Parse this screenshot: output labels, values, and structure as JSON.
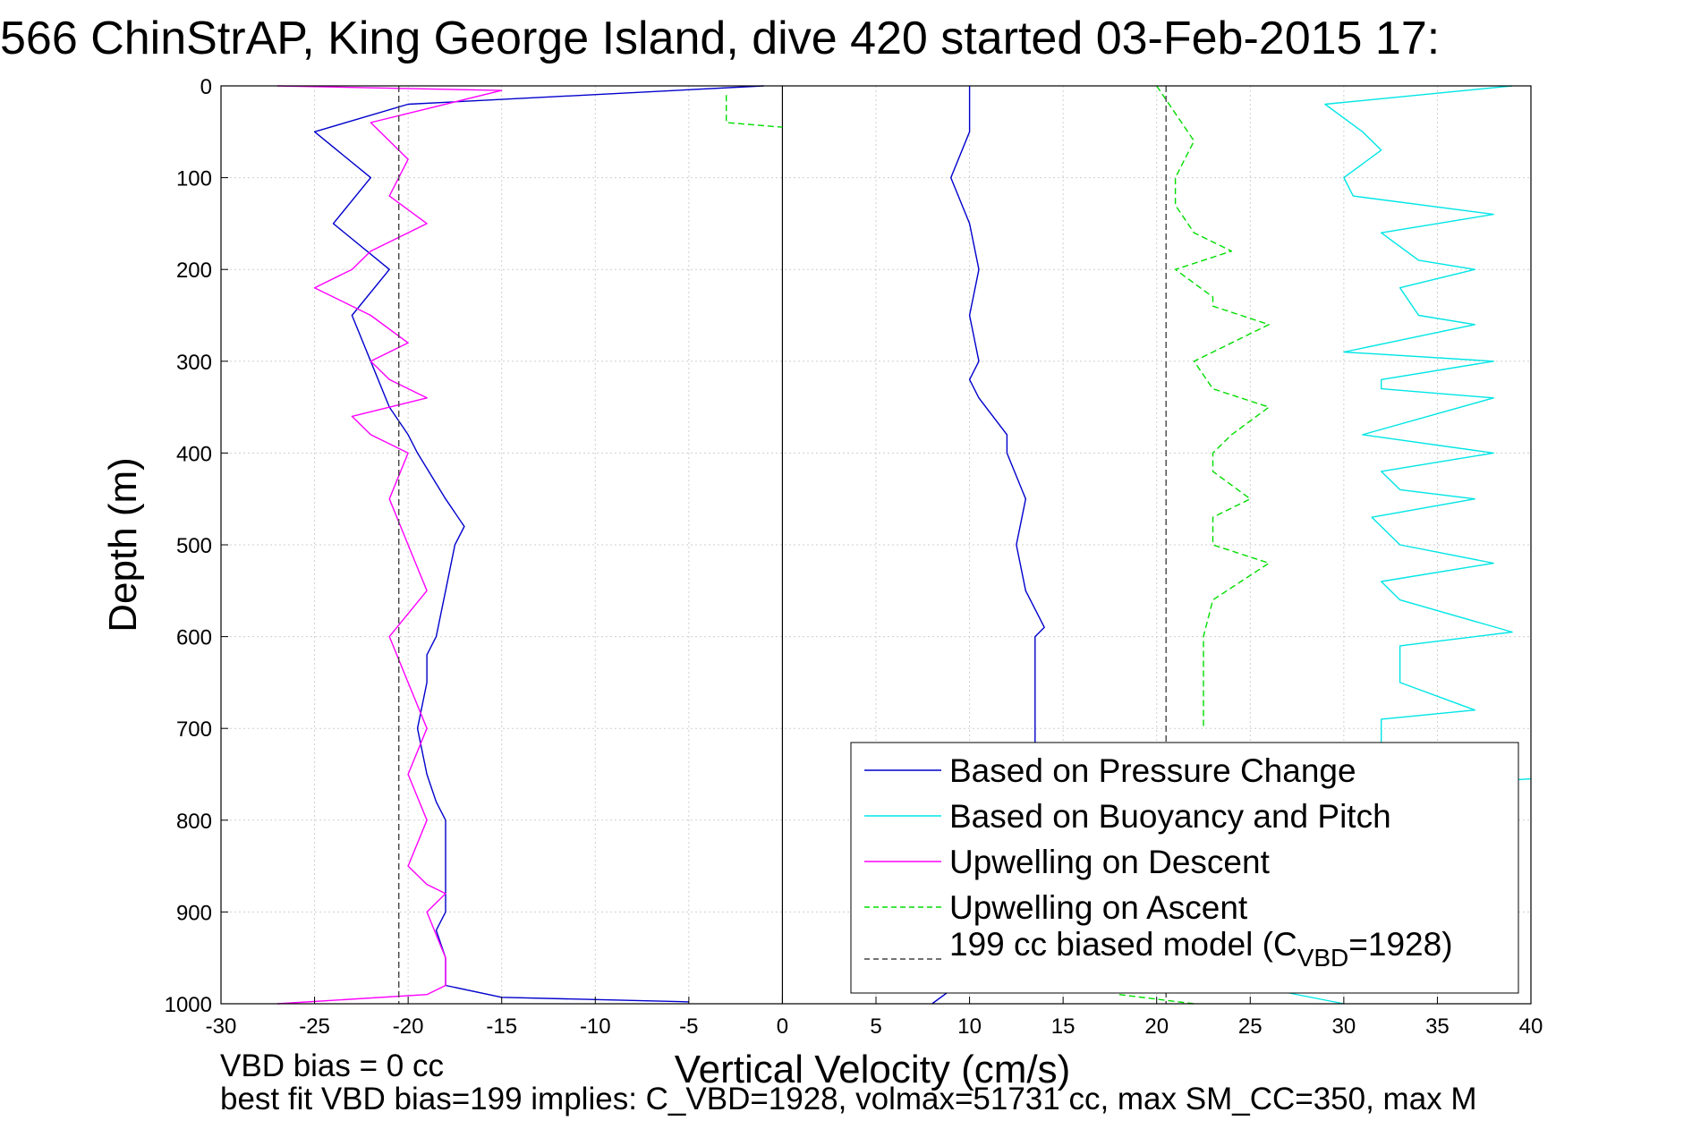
{
  "chart_data": {
    "type": "line",
    "title": "566 ChinStrAP, King George Island, dive 420 started 03-Feb-2015 17:",
    "xlabel": "Vertical Velocity (cm/s)",
    "ylabel": "Depth (m)",
    "xlim": [
      -30,
      40
    ],
    "ylim": [
      0,
      1000
    ],
    "y_reversed": true,
    "grid": true,
    "x_ticks": [
      -30,
      -25,
      -20,
      -15,
      -10,
      -5,
      0,
      5,
      10,
      15,
      20,
      25,
      30,
      35,
      40
    ],
    "y_ticks": [
      0,
      100,
      200,
      300,
      400,
      500,
      600,
      700,
      800,
      900,
      1000
    ],
    "legend_position": "bottom-right",
    "footer_lines": [
      "VBD bias = 0 cc",
      "best fit VBD bias=199 implies: C_VBD=1928, volmax=51731 cc, max SM_CC=350, max M"
    ],
    "series": [
      {
        "name": "Based on Pressure Change",
        "color": "#0000cc",
        "style": "solid",
        "pairs": [
          {
            "x": [
              -1,
              -20,
              -25,
              -22,
              -24,
              -21,
              -23,
              -22,
              -21,
              -20,
              -19.5,
              -18,
              -17,
              -17.5,
              -18,
              -18.5,
              -19,
              -19,
              -19.5,
              -19,
              -18.5,
              -18,
              -18,
              -18,
              -18,
              -18.5,
              -18,
              -18,
              -18,
              -15,
              -5
            ],
            "y": [
              0,
              20,
              50,
              100,
              150,
              200,
              250,
              300,
              350,
              380,
              400,
              450,
              480,
              500,
              550,
              600,
              620,
              650,
              700,
              750,
              780,
              800,
              850,
              870,
              900,
              920,
              950,
              970,
              980,
              993,
              998
            ]
          },
          {
            "x": [
              10,
              10,
              9,
              10,
              10.5,
              10,
              10.5,
              10,
              10.5,
              12,
              12,
              13,
              12.5,
              13,
              14,
              13.5,
              13.5,
              13.5,
              13.5
            ],
            "y": [
              0,
              50,
              100,
              150,
              200,
              250,
              300,
              320,
              340,
              380,
              400,
              450,
              500,
              550,
              590,
              600,
              650,
              680,
              720
            ]
          },
          {
            "x": [
              9,
              8
            ],
            "y": [
              985,
              1000
            ]
          }
        ]
      },
      {
        "name": "Based on Buoyancy and Pitch",
        "color": "#00e5e5",
        "style": "solid",
        "pairs": [
          {
            "x": [
              39,
              29,
              31,
              32,
              30,
              30.5,
              38,
              32,
              34,
              37,
              33,
              34,
              37,
              30,
              38,
              32,
              32,
              38,
              31,
              38,
              32,
              33,
              37,
              31.5,
              33,
              38,
              32,
              33,
              39,
              33,
              33,
              37,
              32,
              32
            ],
            "y": [
              0,
              20,
              50,
              70,
              100,
              120,
              140,
              160,
              190,
              200,
              220,
              250,
              260,
              290,
              300,
              320,
              330,
              340,
              380,
              400,
              420,
              440,
              450,
              470,
              500,
              520,
              540,
              560,
              595,
              610,
              650,
              680,
              690,
              720
            ]
          },
          {
            "x": [
              40,
              36
            ],
            "y": [
              755,
              760
            ]
          },
          {
            "x": [
              25,
              30
            ],
            "y": [
              980,
              1000
            ]
          }
        ]
      },
      {
        "name": "Upwelling on Descent",
        "color": "#ff00ff",
        "style": "solid",
        "pairs": [
          {
            "x": [
              -27,
              -15,
              -22,
              -20,
              -21,
              -19,
              -22,
              -23,
              -25,
              -22,
              -20,
              -22,
              -21,
              -19,
              -23,
              -22,
              -20,
              -21,
              -20,
              -19,
              -21,
              -20,
              -19,
              -20,
              -19,
              -20,
              -19,
              -18,
              -19,
              -18,
              -18,
              -19,
              -27
            ],
            "y": [
              0,
              5,
              40,
              80,
              120,
              150,
              180,
              200,
              220,
              250,
              280,
              300,
              320,
              340,
              360,
              380,
              400,
              450,
              500,
              550,
              600,
              650,
              700,
              750,
              800,
              850,
              870,
              880,
              900,
              950,
              980,
              990,
              1000
            ]
          }
        ]
      },
      {
        "name": "Upwelling on Ascent",
        "color": "#00dd00",
        "style": "dashed",
        "pairs": [
          {
            "x": [
              -3,
              -3,
              0
            ],
            "y": [
              10,
              40,
              45
            ]
          },
          {
            "x": [
              20,
              21,
              22,
              21,
              21,
              22,
              24,
              21,
              23,
              23,
              26,
              22,
              23,
              26,
              24,
              23,
              23,
              25,
              23,
              23,
              26,
              23,
              22.5,
              22.5
            ],
            "y": [
              0,
              30,
              60,
              100,
              130,
              160,
              180,
              200,
              230,
              240,
              260,
              300,
              330,
              350,
              380,
              400,
              420,
              450,
              470,
              500,
              520,
              560,
              600,
              700
            ]
          },
          {
            "x": [
              18,
              22
            ],
            "y": [
              990,
              1000
            ]
          }
        ]
      },
      {
        "name": "199 cc biased model (C_VBD=1928)",
        "color": "#444444",
        "style": "dashed",
        "pairs": [
          {
            "x": [
              -20.5,
              -20.5
            ],
            "y": [
              0,
              1000
            ]
          },
          {
            "x": [
              20.5,
              20.5
            ],
            "y": [
              0,
              1000
            ]
          }
        ]
      }
    ],
    "reference_lines": [
      {
        "axis": "x",
        "value": 0,
        "color": "#000000"
      }
    ]
  }
}
